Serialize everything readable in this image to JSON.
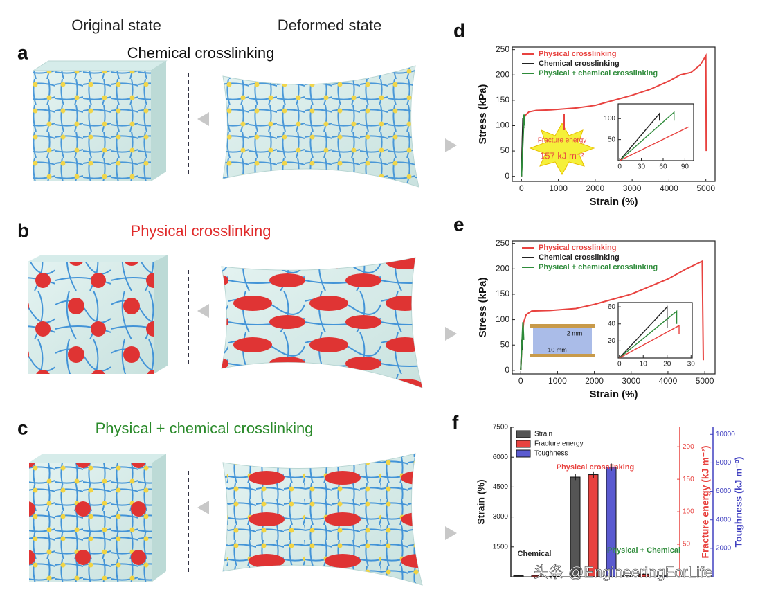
{
  "header": {
    "original": "Original state",
    "deformed": "Deformed state"
  },
  "panels": [
    {
      "letter": "a",
      "title": "Chemical crosslinking"
    },
    {
      "letter": "b",
      "title": "Physical crosslinking"
    },
    {
      "letter": "c",
      "title": "Physical + chemical crosslinking"
    }
  ],
  "chart_data": [
    {
      "type": "line",
      "label": "d",
      "xlabel": "Strain (%)",
      "ylabel": "Stress (kPa)",
      "xlim": [
        -250,
        5250
      ],
      "ylim": [
        -10,
        255
      ],
      "xticks": [
        0,
        1000,
        2000,
        3000,
        4000,
        5000
      ],
      "yticks": [
        0,
        50,
        100,
        150,
        200,
        250
      ],
      "legend": "upper left",
      "series": [
        {
          "name": "Physical crosslinking",
          "color": "#e8423f",
          "x": [
            0,
            30,
            60,
            100,
            200,
            400,
            800,
            1500,
            2000,
            2500,
            3000,
            3500,
            4000,
            4300,
            4600,
            4850,
            5000,
            5010
          ],
          "values": [
            0,
            80,
            110,
            120,
            127,
            130,
            131,
            135,
            140,
            150,
            160,
            172,
            188,
            200,
            205,
            220,
            238,
            50
          ]
        },
        {
          "name": "Chemical crosslinking",
          "color": "#222222",
          "x": [
            0,
            40,
            60
          ],
          "values": [
            0,
            115,
            95
          ]
        },
        {
          "name": "Physical + chemical crosslinking",
          "color": "#2e8b3a",
          "x": [
            0,
            70,
            90
          ],
          "values": [
            0,
            122,
            100
          ]
        }
      ],
      "annotations": [
        "Fracture energy",
        "157 kJ m⁻²"
      ],
      "inset": {
        "xlim": [
          -2,
          102
        ],
        "ylim": [
          0,
          135
        ],
        "xticks": [
          0,
          30,
          60,
          90
        ],
        "yticks": [
          50,
          100
        ],
        "series": [
          {
            "color": "#222222",
            "x": [
              0,
              55,
              55
            ],
            "values": [
              0,
              112,
              95
            ]
          },
          {
            "color": "#2e8b3a",
            "x": [
              0,
              75,
              75
            ],
            "values": [
              0,
              115,
              95
            ]
          },
          {
            "color": "#e8423f",
            "x": [
              0,
              95
            ],
            "values": [
              0,
              80
            ]
          }
        ]
      }
    },
    {
      "type": "line",
      "label": "e",
      "xlabel": "Strain (%)",
      "ylabel": "Stress (kPa)",
      "xlim": [
        -230,
        5280
      ],
      "ylim": [
        -7,
        255
      ],
      "xticks": [
        0,
        1000,
        2000,
        3000,
        4000,
        5000
      ],
      "yticks": [
        0,
        50,
        100,
        150,
        200,
        250
      ],
      "legend": "upper left",
      "series": [
        {
          "name": "Physical crosslinking",
          "color": "#e8423f",
          "x": [
            0,
            40,
            80,
            150,
            300,
            800,
            1500,
            2000,
            2500,
            3000,
            3500,
            4000,
            4500,
            4930,
            4960
          ],
          "values": [
            0,
            60,
            95,
            110,
            117,
            118,
            122,
            130,
            140,
            150,
            165,
            180,
            200,
            215,
            20
          ]
        },
        {
          "name": "Chemical crosslinking",
          "color": "#222222",
          "x": [
            0,
            30,
            40
          ],
          "values": [
            0,
            60,
            40
          ]
        },
        {
          "name": "Physical + chemical crosslinking",
          "color": "#2e8b3a",
          "x": [
            0,
            60,
            80
          ],
          "values": [
            0,
            95,
            60
          ]
        }
      ],
      "annotations": [
        "2 mm",
        "10 mm"
      ],
      "inset": {
        "xlim": [
          -0.5,
          30.5
        ],
        "ylim": [
          0,
          65
        ],
        "xticks": [
          0,
          10,
          20,
          30
        ],
        "yticks": [
          20,
          40,
          60
        ],
        "series": [
          {
            "color": "#222222",
            "x": [
              0,
              20,
              20
            ],
            "values": [
              0,
              60,
              35
            ]
          },
          {
            "color": "#2e8b3a",
            "x": [
              0,
              24,
              24
            ],
            "values": [
              0,
              55,
              40
            ]
          },
          {
            "color": "#e8423f",
            "x": [
              0,
              25,
              25
            ],
            "values": [
              0,
              38,
              28
            ]
          }
        ]
      }
    },
    {
      "type": "bar",
      "label": "f",
      "categories": [
        "Chemical",
        "Physical crosslinking",
        "Physical + Chemical"
      ],
      "category_colors": [
        "#222222",
        "#e8423f",
        "#2e8b3a"
      ],
      "ylabel": "Strain (%)",
      "y2label": "Fracture energy (kJ m⁻²)",
      "y3label": "Toughness (kJ m⁻³)",
      "ylim": [
        0,
        7500
      ],
      "yticks": [
        1500,
        3000,
        4500,
        6000,
        7500
      ],
      "y2lim": [
        0,
        230
      ],
      "y2ticks": [
        50,
        100,
        150,
        200
      ],
      "y3lim": [
        0,
        10500
      ],
      "y3ticks": [
        2000,
        4000,
        6000,
        8000,
        10000
      ],
      "series": [
        {
          "name": "Strain",
          "color": "#555555",
          "values": [
            50,
            5000,
            80
          ],
          "errors": [
            10,
            150,
            15
          ]
        },
        {
          "name": "Fracture energy",
          "color": "#e8423f",
          "axis": "y2",
          "values": [
            2,
            157,
            4
          ],
          "errors": [
            0.5,
            5,
            1
          ]
        },
        {
          "name": "Toughness",
          "color": "#5a5ad0",
          "axis": "y3",
          "values": [
            30,
            7700,
            60
          ],
          "errors": [
            5,
            250,
            10
          ]
        }
      ]
    }
  ],
  "watermark": "头条 @EngineeringForLife"
}
